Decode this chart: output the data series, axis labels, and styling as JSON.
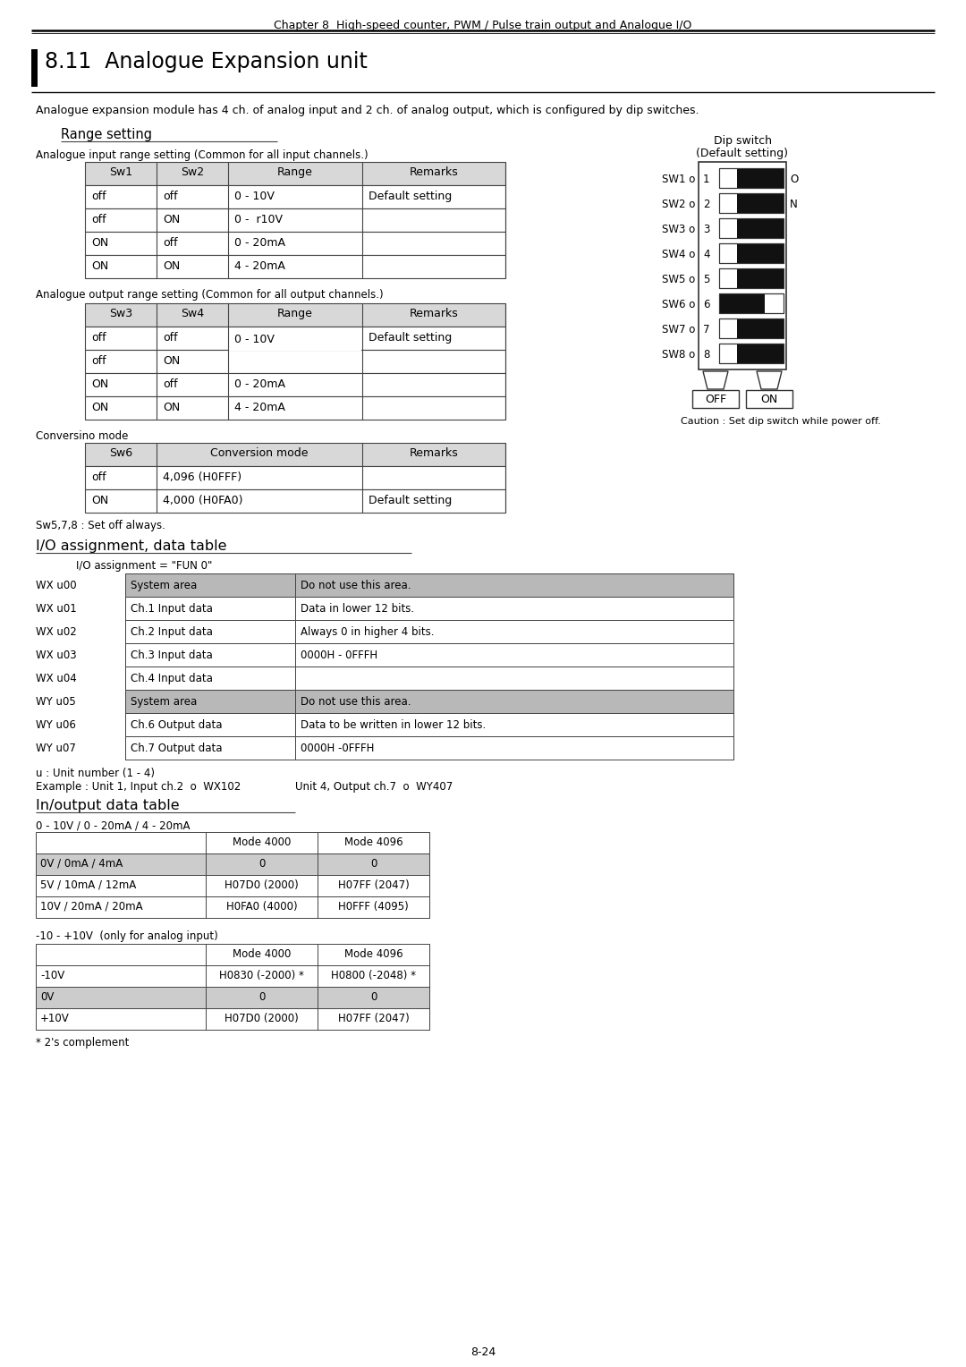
{
  "header_text": "Chapter 8  High-speed counter, PWM / Pulse train output and Analogue I/O",
  "title": "8.11  Analogue Expansion unit",
  "intro": "Analogue expansion module has 4 ch. of analog input and 2 ch. of analog output, which is configured by dip switches.",
  "section1": "Range setting",
  "subsection1": "Analogue input range setting (Common for all input channels.)",
  "table1_headers": [
    "Sw1",
    "Sw2",
    "Range",
    "Remarks"
  ],
  "table1_rows": [
    [
      "off",
      "off",
      "0 - 10V",
      "Default setting"
    ],
    [
      "off",
      "ON",
      "0 -  r10V",
      ""
    ],
    [
      "ON",
      "off",
      "0 - 20mA",
      ""
    ],
    [
      "ON",
      "ON",
      "4 - 20mA",
      ""
    ]
  ],
  "subsection2": "Analogue output range setting (Common for all output channels.)",
  "table2_headers": [
    "Sw3",
    "Sw4",
    "Range",
    "Remarks"
  ],
  "table2_rows": [
    [
      "off",
      "off",
      "Default setting"
    ],
    [
      "off",
      "ON",
      ""
    ],
    [
      "ON",
      "off",
      ""
    ],
    [
      "ON",
      "ON",
      ""
    ]
  ],
  "table2_ranges": [
    "0 - 10V",
    "",
    "0 - 20mA",
    "4 - 20mA"
  ],
  "subsection3": "Conversino mode",
  "table3_headers": [
    "Sw6",
    "Conversion mode",
    "Remarks"
  ],
  "table3_rows": [
    [
      "off",
      "4,096 (H0FFF)",
      ""
    ],
    [
      "ON",
      "4,000 (H0FA0)",
      "Default setting"
    ]
  ],
  "sw578": "Sw5,7,8 : Set off always.",
  "dip_label1": "Dip switch",
  "dip_label2": "(Default setting)",
  "dip_switches": [
    "SW1",
    "SW2",
    "SW3",
    "SW4",
    "SW5",
    "SW6",
    "SW7",
    "SW8"
  ],
  "dip_numbers": [
    "1",
    "2",
    "3",
    "4",
    "5",
    "6",
    "7",
    "8"
  ],
  "dip_on_state": [
    true,
    true,
    true,
    true,
    true,
    false,
    true,
    true
  ],
  "off_label": "OFF",
  "on_label": "ON",
  "caution": "Caution : Set dip switch while power off.",
  "section2": "I/O assignment, data table",
  "io_assign_label": "I/O assignment = \"FUN 0\"",
  "io_table_rows": [
    [
      "WX u00",
      "System area",
      "Do not use this area.",
      true
    ],
    [
      "WX u01",
      "Ch.1 Input data",
      "Data in lower 12 bits.",
      false
    ],
    [
      "WX u02",
      "Ch.2 Input data",
      "Always 0 in higher 4 bits.",
      false
    ],
    [
      "WX u03",
      "Ch.3 Input data",
      "0000H - 0FFFH",
      false
    ],
    [
      "WX u04",
      "Ch.4 Input data",
      "",
      false
    ],
    [
      "WY u05",
      "System area",
      "Do not use this area.",
      true
    ],
    [
      "WY u06",
      "Ch.6 Output data",
      "Data to be written in lower 12 bits.",
      false
    ],
    [
      "WY u07",
      "Ch.7 Output data",
      "0000H -0FFFH",
      false
    ]
  ],
  "unit_note": "u : Unit number (1 - 4)",
  "example_left": "Example : Unit 1, Input ch.2  o  WX102",
  "example_right": "Unit 4, Output ch.7  o  WY407",
  "section3": "In/output data table",
  "inout_label": "0 - 10V / 0 - 20mA / 4 - 20mA",
  "inout_table1_headers": [
    "",
    "Mode 4000",
    "Mode 4096"
  ],
  "inout_table1_rows": [
    [
      "0V / 0mA / 4mA",
      "0",
      "0"
    ],
    [
      "5V / 10mA / 12mA",
      "H07D0 (2000)",
      "H07FF (2047)"
    ],
    [
      "10V / 20mA / 20mA",
      "H0FA0 (4000)",
      "H0FFF (4095)"
    ]
  ],
  "inout_label2": "-10 - +10V  (only for analog input)",
  "inout_table2_headers": [
    "",
    "Mode 4000",
    "Mode 4096"
  ],
  "inout_table2_rows": [
    [
      "-10V",
      "H0830 (-2000) *",
      "H0800 (-2048) *"
    ],
    [
      "0V",
      "0",
      "0"
    ],
    [
      "+10V",
      "H07D0 (2000)",
      "H07FF (2047)"
    ]
  ],
  "complement_note": "* 2's complement",
  "page_num": "8-24",
  "bg_color": "#ffffff",
  "text_color": "#000000",
  "table_header_bg": "#d8d8d8",
  "table_border": "#444444",
  "io_gray_bg": "#b8b8b8"
}
